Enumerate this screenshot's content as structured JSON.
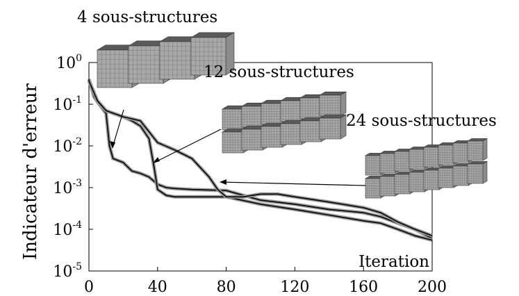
{
  "chart_data": {
    "type": "line",
    "title": "",
    "xlabel": "Iteration",
    "ylabel": "Indicateur d'erreur",
    "xlim": [
      0,
      200
    ],
    "ylim_exponent": [
      -5,
      0
    ],
    "yscale": "log",
    "x_ticks": [
      "0",
      "40",
      "80",
      "120",
      "160",
      "200"
    ],
    "y_tick_base": "10",
    "y_tick_exponents": [
      "0",
      "-1",
      "-2",
      "-3",
      "-4",
      "-5"
    ],
    "grid": false,
    "series": [
      {
        "name": "4 sous-structures",
        "x": [
          0,
          3,
          6,
          10,
          12,
          14,
          20,
          25,
          30,
          35,
          40,
          45,
          50,
          60,
          80,
          100,
          120,
          140,
          160,
          170,
          180,
          190,
          200
        ],
        "y": [
          0.4,
          0.15,
          0.1,
          0.06,
          0.01,
          0.005,
          0.004,
          0.0025,
          0.0022,
          0.0018,
          0.0012,
          0.001,
          0.00095,
          0.0009,
          0.00085,
          0.0005,
          0.0004,
          0.0003,
          0.00025,
          0.0002,
          0.00014,
          0.0001,
          6e-05
        ]
      },
      {
        "name": "12 sous-structures",
        "x": [
          0,
          5,
          10,
          20,
          25,
          30,
          35,
          38,
          40,
          45,
          50,
          60,
          80,
          100,
          120,
          140,
          160,
          170,
          180,
          190,
          200
        ],
        "y": [
          0.38,
          0.12,
          0.07,
          0.05,
          0.04,
          0.03,
          0.015,
          0.003,
          0.0009,
          0.00065,
          0.0006,
          0.0006,
          0.0006,
          0.0004,
          0.0003,
          0.00022,
          0.00016,
          0.00014,
          0.0001,
          7e-05,
          5.5e-05
        ]
      },
      {
        "name": "24 sous-structures",
        "x": [
          0,
          5,
          10,
          20,
          30,
          40,
          50,
          60,
          70,
          75,
          80,
          90,
          100,
          110,
          120,
          140,
          160,
          170,
          180,
          190,
          200
        ],
        "y": [
          0.36,
          0.12,
          0.07,
          0.05,
          0.04,
          0.012,
          0.008,
          0.005,
          0.0018,
          0.0009,
          0.0006,
          0.0006,
          0.0007,
          0.0007,
          0.0006,
          0.00045,
          0.00033,
          0.00025,
          0.00015,
          0.0001,
          7e-05
        ]
      }
    ],
    "annotations": [
      "4 sous-structures",
      "12 sous-structures",
      "24 sous-structures"
    ],
    "colors": {
      "line": "#000000",
      "marker": "#9a9a9a",
      "cube_face": "#a8a8a8",
      "cube_dark": "#5a5a5a"
    }
  }
}
